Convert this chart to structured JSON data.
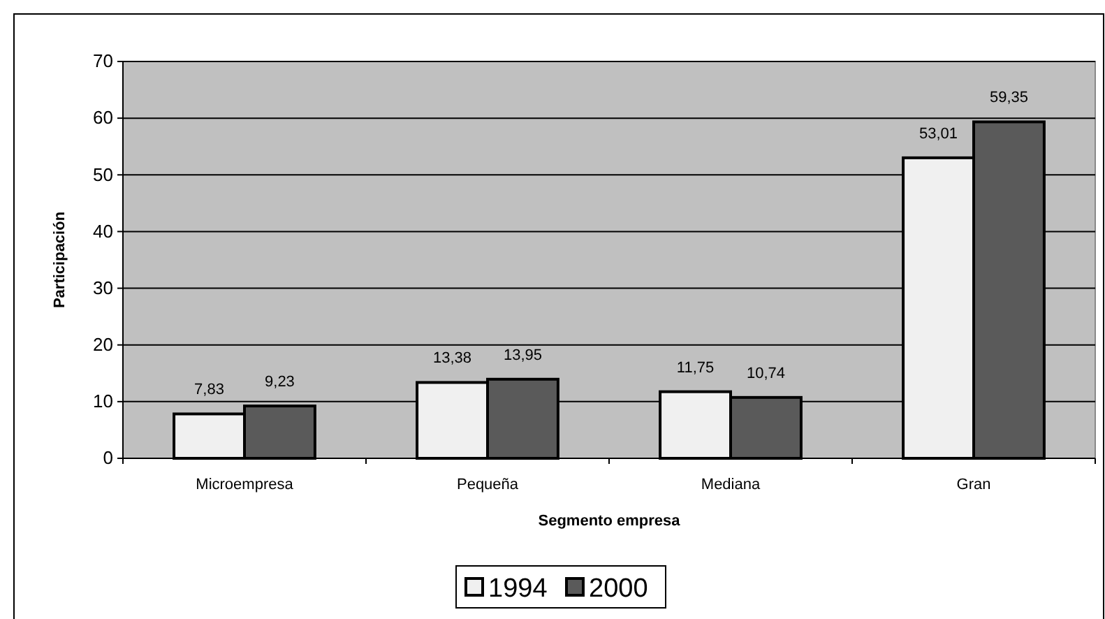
{
  "chart_data": {
    "type": "bar",
    "xlabel": "Segmento empresa",
    "ylabel": "Participación",
    "categories": [
      "Microempresa",
      "Pequeña",
      "Mediana",
      "Gran"
    ],
    "series": [
      {
        "name": "1994",
        "color": "#f0f0f0",
        "values": [
          7.83,
          13.38,
          11.75,
          53.01
        ],
        "value_labels": [
          "7,83",
          "13,38",
          "11,75",
          "53,01"
        ]
      },
      {
        "name": "2000",
        "color": "#5a5a5a",
        "values": [
          9.23,
          13.95,
          10.74,
          59.35
        ],
        "value_labels": [
          "9,23",
          "13,95",
          "10,74",
          "59,35"
        ]
      }
    ],
    "ylim": [
      0,
      70
    ],
    "yticks": [
      0,
      10,
      20,
      30,
      40,
      50,
      60,
      70
    ],
    "grid": "y",
    "legend": "bottom"
  }
}
